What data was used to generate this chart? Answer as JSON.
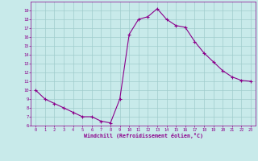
{
  "x": [
    0,
    1,
    2,
    3,
    4,
    5,
    6,
    7,
    8,
    9,
    10,
    11,
    12,
    13,
    14,
    15,
    16,
    17,
    18,
    19,
    20,
    21,
    22,
    23
  ],
  "y": [
    10,
    9,
    8.5,
    8,
    7.5,
    7,
    7,
    6.5,
    6.3,
    9,
    16.3,
    18,
    18.3,
    19.2,
    18,
    17.3,
    17.1,
    15.5,
    14.2,
    13.2,
    12.2,
    11.5,
    11.1,
    11
  ],
  "line_color": "#8B008B",
  "marker": "+",
  "marker_color": "#8B008B",
  "bg_color": "#c8eaea",
  "grid_color": "#a0cccc",
  "xlabel": "Windchill (Refroidissement éolien,°C)",
  "xlabel_color": "#8B008B",
  "tick_color": "#8B008B",
  "ylim": [
    6,
    20
  ],
  "xlim": [
    -0.5,
    23.5
  ],
  "yticks": [
    6,
    7,
    8,
    9,
    10,
    11,
    12,
    13,
    14,
    15,
    16,
    17,
    18,
    19
  ],
  "xticks": [
    0,
    1,
    2,
    3,
    4,
    5,
    6,
    7,
    8,
    9,
    10,
    11,
    12,
    13,
    14,
    15,
    16,
    17,
    18,
    19,
    20,
    21,
    22,
    23
  ]
}
